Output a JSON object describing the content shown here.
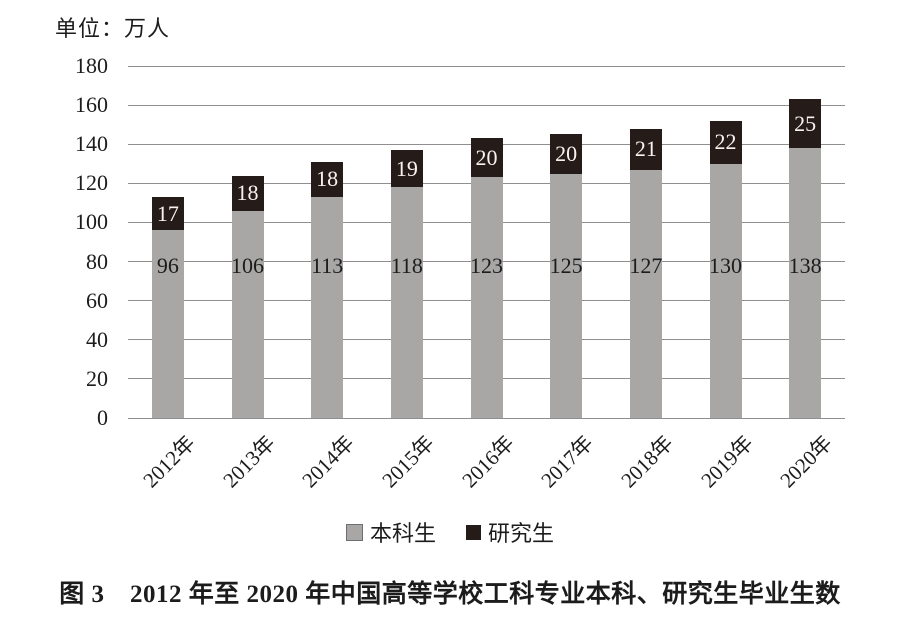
{
  "figure": {
    "unit_label": "单位：万人",
    "caption": "图 3　2012 年至 2020 年中国高等学校工科专业本科、研究生毕业生数"
  },
  "chart_data": {
    "type": "bar",
    "stacked": true,
    "title": "2012年至2020年中国高等学校工科专业本科、研究生毕业生数",
    "unit": "万人",
    "categories": [
      "2012年",
      "2013年",
      "2014年",
      "2015年",
      "2016年",
      "2017年",
      "2018年",
      "2019年",
      "2020年"
    ],
    "series": [
      {
        "name": "本科生",
        "values": [
          96,
          106,
          113,
          118,
          123,
          125,
          127,
          130,
          138
        ],
        "color": "#a8a7a5"
      },
      {
        "name": "研究生",
        "values": [
          17,
          18,
          18,
          19,
          20,
          20,
          21,
          22,
          25
        ],
        "color": "#251b19"
      }
    ],
    "xlabel": "",
    "ylabel": "单位：万人",
    "ylim": [
      0,
      180
    ],
    "ytick_step": 20,
    "grid": true,
    "legend_position": "bottom",
    "colors": {
      "grid": "#8f8f8f",
      "axis_text": "#1c1c1c",
      "grad_label_text": "#f8f3ec",
      "undergrad_swatch_border": "#6e6e6e"
    }
  }
}
